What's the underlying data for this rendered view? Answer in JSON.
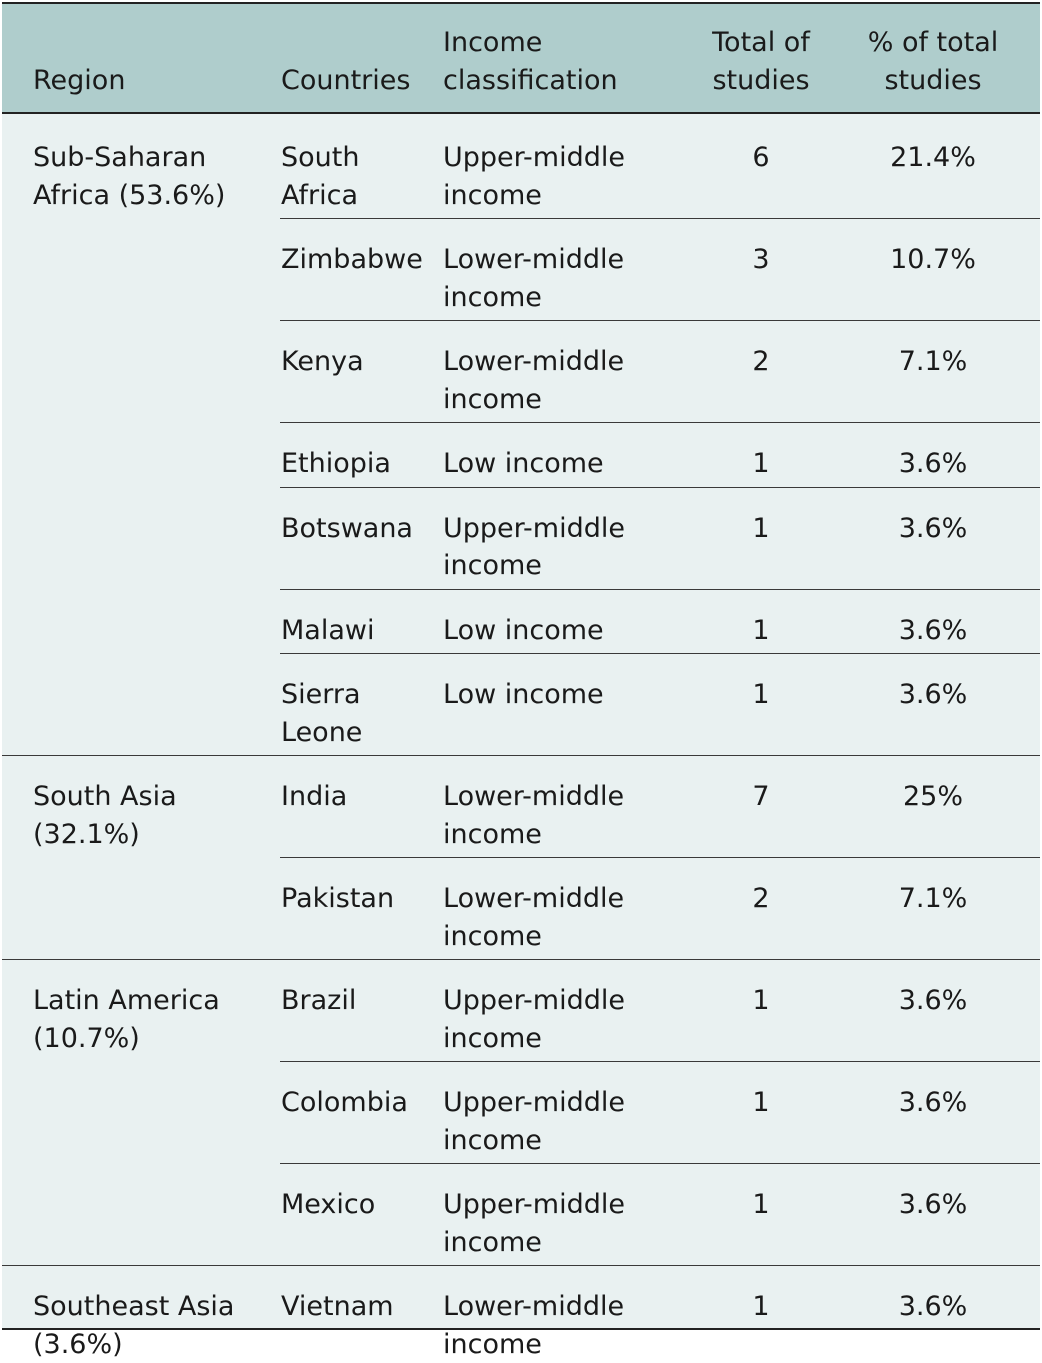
{
  "header": {
    "region": "Region",
    "countries": "Countries",
    "income_l1": "Income",
    "income_l2": "classification",
    "total_l1": "Total of",
    "total_l2": "studies",
    "pct_l1": "% of total",
    "pct_l2": "studies"
  },
  "groups": [
    {
      "region_l1": "Sub-Saharan",
      "region_l2": "Africa (53.6%)",
      "rows": [
        {
          "country_l1": "South",
          "country_l2": "Africa",
          "income_l1": "Upper-middle",
          "income_l2": "income",
          "total": "6",
          "pct": "21.4%"
        },
        {
          "country_l1": "Zimbabwe",
          "country_l2": "",
          "income_l1": "Lower-middle",
          "income_l2": "income",
          "total": "3",
          "pct": "10.7%"
        },
        {
          "country_l1": "Kenya",
          "country_l2": "",
          "income_l1": "Lower-middle",
          "income_l2": "income",
          "total": "2",
          "pct": "7.1%"
        },
        {
          "country_l1": "Ethiopia",
          "country_l2": "",
          "income_l1": "Low income",
          "income_l2": "",
          "total": "1",
          "pct": "3.6%"
        },
        {
          "country_l1": "Botswana",
          "country_l2": "",
          "income_l1": "Upper-middle",
          "income_l2": "income",
          "total": "1",
          "pct": "3.6%"
        },
        {
          "country_l1": "Malawi",
          "country_l2": "",
          "income_l1": "Low income",
          "income_l2": "",
          "total": "1",
          "pct": "3.6%"
        },
        {
          "country_l1": "Sierra",
          "country_l2": "Leone",
          "income_l1": "Low income",
          "income_l2": "",
          "total": "1",
          "pct": "3.6%"
        }
      ]
    },
    {
      "region_l1": "South Asia",
      "region_l2": "(32.1%)",
      "rows": [
        {
          "country_l1": "India",
          "country_l2": "",
          "income_l1": "Lower-middle",
          "income_l2": "income",
          "total": "7",
          "pct": "25%"
        },
        {
          "country_l1": "Pakistan",
          "country_l2": "",
          "income_l1": "Lower-middle",
          "income_l2": "income",
          "total": "2",
          "pct": "7.1%"
        }
      ]
    },
    {
      "region_l1": "Latin America",
      "region_l2": "(10.7%)",
      "rows": [
        {
          "country_l1": "Brazil",
          "country_l2": "",
          "income_l1": "Upper-middle",
          "income_l2": "income",
          "total": "1",
          "pct": "3.6%"
        },
        {
          "country_l1": "Colombia",
          "country_l2": "",
          "income_l1": "Upper-middle",
          "income_l2": "income",
          "total": "1",
          "pct": "3.6%"
        },
        {
          "country_l1": "Mexico",
          "country_l2": "",
          "income_l1": "Upper-middle",
          "income_l2": "income",
          "total": "1",
          "pct": "3.6%"
        }
      ]
    },
    {
      "region_l1": "Southeast Asia",
      "region_l2": "(3.6%)",
      "rows": [
        {
          "country_l1": "Vietnam",
          "country_l2": "",
          "income_l1": "Lower-middle",
          "income_l2": "income",
          "total": "1",
          "pct": "3.6%"
        }
      ]
    }
  ],
  "colors": {
    "header_bg": "#afcdcc",
    "body_bg": "#e9f1f1",
    "rule": "#222222"
  }
}
